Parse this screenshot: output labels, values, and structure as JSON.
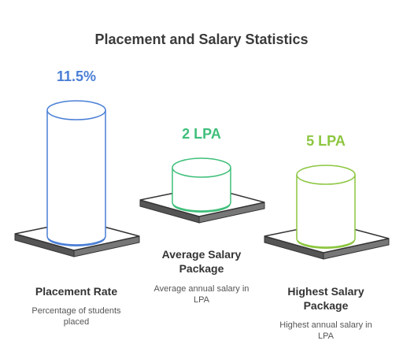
{
  "header": {
    "title": "Placement and Salary Statistics"
  },
  "items": [
    {
      "value": "11.5%",
      "name": "Placement Rate",
      "description": "Percentage of students placed"
    },
    {
      "value": "2 LPA",
      "name": "Average Salary Package",
      "description": "Average annual salary in LPA"
    },
    {
      "value": "5 LPA",
      "name": "Highest Salary Package",
      "description": "Highest annual salary in LPA"
    }
  ]
}
